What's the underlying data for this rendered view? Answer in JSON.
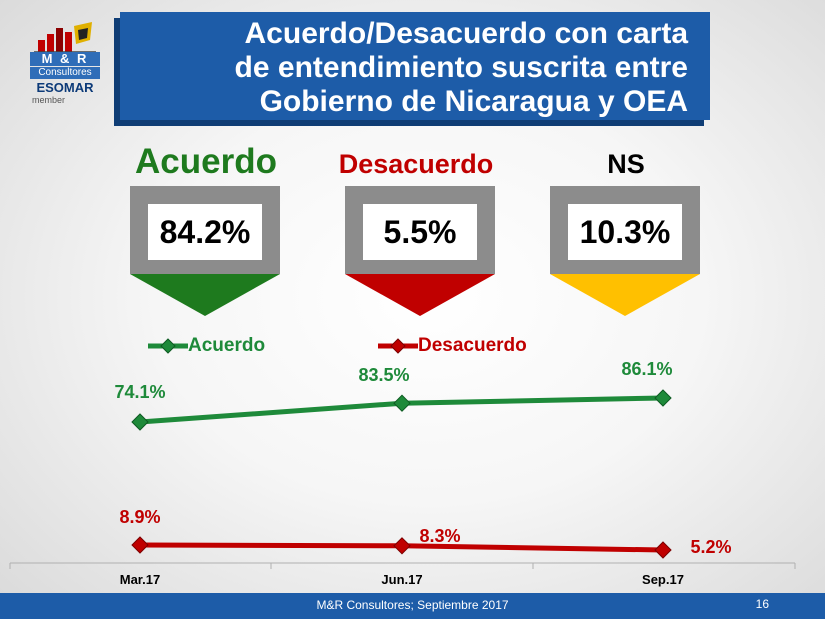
{
  "logo": {
    "brand": "M & R",
    "name": "Consultores",
    "assoc": "ESOMAR",
    "member": "member"
  },
  "title": [
    "Acuerdo/Desacuerdo con carta",
    "de entendimiento suscrita entre",
    "Gobierno de Nicaragua y OEA"
  ],
  "kpis": [
    {
      "label": "Acuerdo",
      "value": "84.2%",
      "color": "#1e7a1e"
    },
    {
      "label": "Desacuerdo",
      "value": "5.5%",
      "color": "#c00000"
    },
    {
      "label": "NS",
      "value": "10.3%",
      "color": "#ffc000"
    }
  ],
  "kpi_box_color": "#8c8c8c",
  "chart_data": {
    "type": "line",
    "categories": [
      "Mar.17",
      "Jun.17",
      "Sep.17"
    ],
    "series": [
      {
        "name": "Acuerdo",
        "values": [
          74.1,
          83.5,
          86.1
        ],
        "labels": [
          "74.1%",
          "83.5%",
          "86.1%"
        ],
        "color": "#1e8a3a"
      },
      {
        "name": "Desacuerdo",
        "values": [
          8.9,
          8.3,
          5.2
        ],
        "labels": [
          "8.9%",
          "8.3%",
          "5.2%"
        ],
        "color": "#c00000"
      }
    ],
    "legend": "top",
    "grid": false
  },
  "footer": {
    "text": "M&R Consultores; Septiembre 2017",
    "page": "16"
  }
}
